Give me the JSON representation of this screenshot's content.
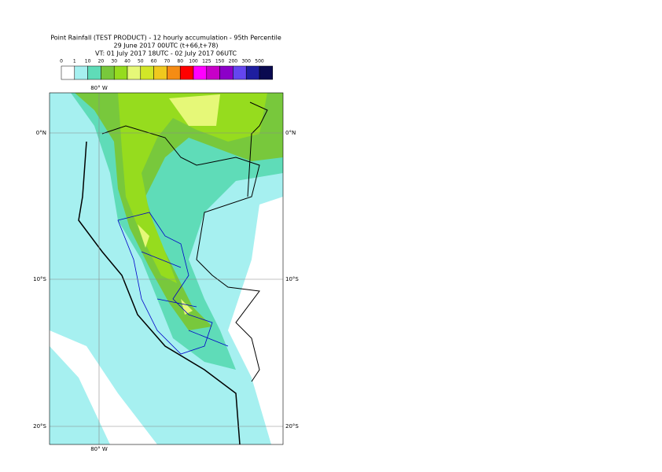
{
  "header": {
    "title": "Point Rainfall (TEST PRODUCT) - 12 hourly accumulation - 95th Percentile",
    "subtitle": "29 June 2017 00UTC (t+66,t+78)",
    "valid_time": "VT: 01 July 2017 18UTC - 02 July 2017 06UTC"
  },
  "legend": {
    "labels": [
      "0",
      "1",
      "10",
      "20",
      "30",
      "40",
      "50",
      "60",
      "70",
      "80",
      "100",
      "125",
      "150",
      "200",
      "300",
      "500"
    ],
    "colors": [
      "#ffffff",
      "#a6f0f0",
      "#5fdcb8",
      "#78c83c",
      "#96dc1e",
      "#e6f878",
      "#d2e628",
      "#f0c81e",
      "#f58c14",
      "#ff0000",
      "#ff00ff",
      "#c800c8",
      "#8c00c8",
      "#6446f0",
      "#1e1ea0",
      "#0a0a50"
    ]
  },
  "map": {
    "longitude_label": "80° W",
    "latitude_labels": [
      "0°N",
      "10°S",
      "20°S"
    ]
  }
}
